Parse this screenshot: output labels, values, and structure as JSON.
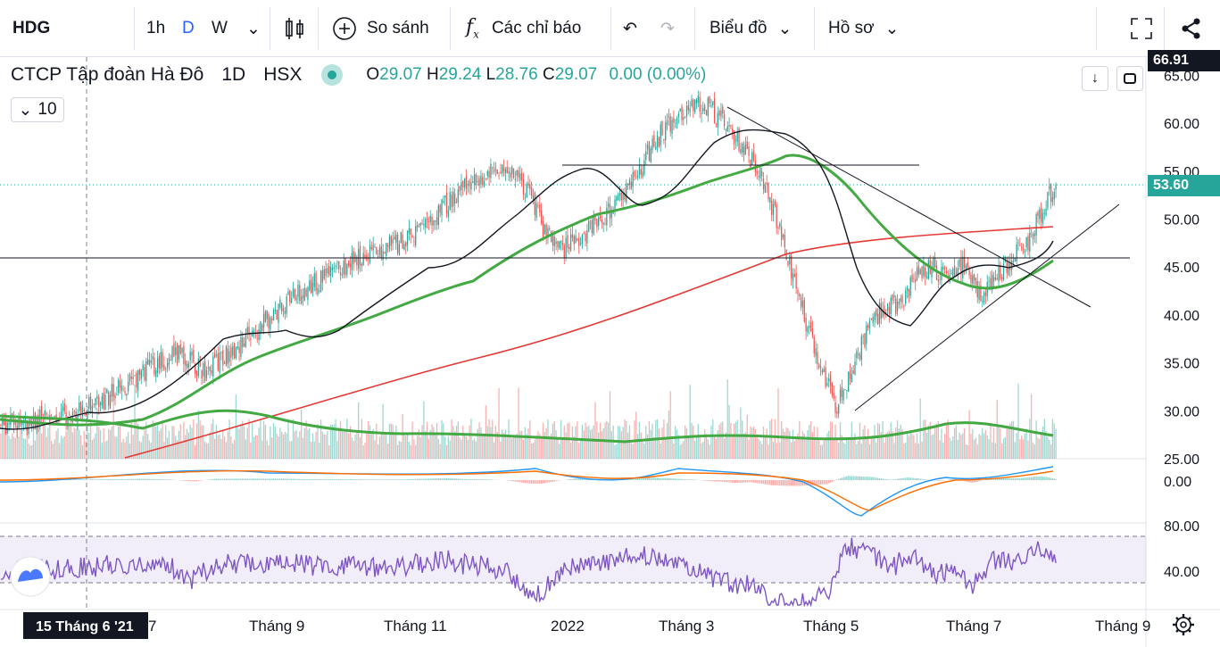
{
  "toolbar": {
    "symbol": "HDG",
    "interval_1h": "1h",
    "interval_d": "D",
    "interval_w": "W",
    "compare_label": "So sánh",
    "fx_label": "f",
    "indicators_label": "Các chỉ báo",
    "chart_label": "Biểu đồ",
    "profile_label": "Hồ sơ"
  },
  "legend": {
    "company": "CTCP Tập đoàn Hà Đô",
    "interval": "1D",
    "exchange": "HSX",
    "o_key": "O",
    "o_val": "29.07",
    "h_key": "H",
    "h_val": "29.24",
    "l_key": "L",
    "l_val": "28.76",
    "c_key": "C",
    "c_val": "29.07",
    "change": "0.00 (0.00%)",
    "collapse_count": "10"
  },
  "price_axis": {
    "ticks": [
      "65.00",
      "60.00",
      "55.00",
      "50.00",
      "45.00",
      "40.00",
      "35.00",
      "30.00",
      "25.00"
    ],
    "top_tag": "66.91",
    "last_tag": "53.60",
    "macd_tick": "0.00",
    "rsi_ticks": [
      "80.00",
      "40.00"
    ]
  },
  "time_axis": {
    "labels": [
      "Tháng 9",
      "Tháng 11",
      "2022",
      "Tháng 3",
      "Tháng 5",
      "Tháng 7",
      "Tháng 9"
    ],
    "crosshair_label": "15 Tháng 6 '21",
    "partial_label": "7"
  },
  "colors": {
    "up": "#26a69a",
    "down": "#ef5350",
    "ma_black": "#131722",
    "ma_green": "#43a943",
    "ma_red": "#e53935",
    "macd": "#2196f3",
    "signal": "#ff6d00",
    "rsi": "#7e57c2",
    "last_price": "#26a69a"
  },
  "chart_data": {
    "type": "candlestick",
    "symbol": "HDG",
    "y_range": [
      25,
      66.9
    ],
    "x_labels": [
      "Tháng 9",
      "Tháng 11",
      "2022",
      "Tháng 3",
      "Tháng 5",
      "Tháng 7",
      "Tháng 9"
    ],
    "close_path": [
      [
        0,
        28.5
      ],
      [
        20,
        29.0
      ],
      [
        40,
        29.5
      ],
      [
        60,
        31
      ],
      [
        80,
        33
      ],
      [
        95,
        35
      ],
      [
        110,
        36
      ],
      [
        125,
        34
      ],
      [
        140,
        36
      ],
      [
        160,
        39
      ],
      [
        180,
        42
      ],
      [
        200,
        44
      ],
      [
        220,
        46
      ],
      [
        235,
        47
      ],
      [
        250,
        48
      ],
      [
        265,
        50
      ],
      [
        280,
        53
      ],
      [
        300,
        55
      ],
      [
        315,
        55
      ],
      [
        325,
        52
      ],
      [
        335,
        48
      ],
      [
        345,
        47
      ],
      [
        360,
        49
      ],
      [
        375,
        51
      ],
      [
        390,
        55
      ],
      [
        400,
        58
      ],
      [
        415,
        61
      ],
      [
        430,
        62
      ],
      [
        445,
        60
      ],
      [
        455,
        57
      ],
      [
        465,
        55
      ],
      [
        475,
        50
      ],
      [
        485,
        44
      ],
      [
        495,
        38
      ],
      [
        505,
        33
      ],
      [
        512,
        30.5
      ],
      [
        520,
        34
      ],
      [
        530,
        38
      ],
      [
        540,
        41
      ],
      [
        550,
        41
      ],
      [
        560,
        44
      ],
      [
        570,
        45
      ],
      [
        580,
        44
      ],
      [
        590,
        45.5
      ],
      [
        600,
        42
      ],
      [
        610,
        44
      ],
      [
        620,
        46
      ],
      [
        630,
        48
      ],
      [
        640,
        52
      ],
      [
        646,
        53.6
      ]
    ],
    "last_close": 53.6
  }
}
